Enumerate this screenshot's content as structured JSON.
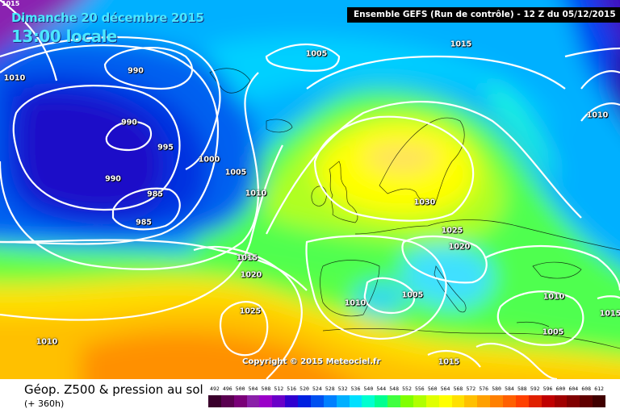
{
  "header": {
    "corner_label": "1015",
    "date": "Dimanche 20 décembre 2015",
    "time": "13:00 locale",
    "model": "Ensemble GEFS  (Run de contrôle)   -  12 Z du 05/12/2015"
  },
  "copyright": "Copyright © 2015 Meteociel.fr",
  "legend": {
    "title": "Géop. Z500 & pression au sol",
    "subtitle": "(+ 360h)",
    "ticks": [
      "492",
      "496",
      "500",
      "504",
      "508",
      "512",
      "516",
      "520",
      "524",
      "528",
      "532",
      "536",
      "540",
      "544",
      "548",
      "552",
      "556",
      "560",
      "564",
      "568",
      "572",
      "576",
      "580",
      "584",
      "588",
      "592",
      "596",
      "600",
      "604",
      "608",
      "612"
    ],
    "colors": [
      "#3a002c",
      "#5a0050",
      "#7a0078",
      "#8a20a8",
      "#9a00c8",
      "#6a00c8",
      "#3000d0",
      "#0020e0",
      "#0050f0",
      "#0080ff",
      "#00b0ff",
      "#00e0ff",
      "#00ffd0",
      "#00ff90",
      "#40ff40",
      "#80ff00",
      "#b0ff00",
      "#e0ff00",
      "#ffff00",
      "#ffe000",
      "#ffc000",
      "#ffa000",
      "#ff8000",
      "#ff6000",
      "#ff4000",
      "#e02000",
      "#c00000",
      "#a00000",
      "#800000",
      "#600000",
      "#400000"
    ]
  },
  "isobars": [
    {
      "label": "1010"
    },
    {
      "label": "990"
    },
    {
      "label": "990"
    },
    {
      "label": "995"
    },
    {
      "label": "1000"
    },
    {
      "label": "1005"
    },
    {
      "label": "1005"
    },
    {
      "label": "1015"
    },
    {
      "label": "990"
    },
    {
      "label": "985"
    },
    {
      "label": "985"
    },
    {
      "label": "1010"
    },
    {
      "label": "1015"
    },
    {
      "label": "1020"
    },
    {
      "label": "1025"
    },
    {
      "label": "1010"
    },
    {
      "label": "1030"
    },
    {
      "label": "1025"
    },
    {
      "label": "1020"
    },
    {
      "label": "1005"
    },
    {
      "label": "1010"
    },
    {
      "label": "1010"
    },
    {
      "label": "1005"
    },
    {
      "label": "1015"
    },
    {
      "label": "1015"
    },
    {
      "label": "1010"
    }
  ]
}
